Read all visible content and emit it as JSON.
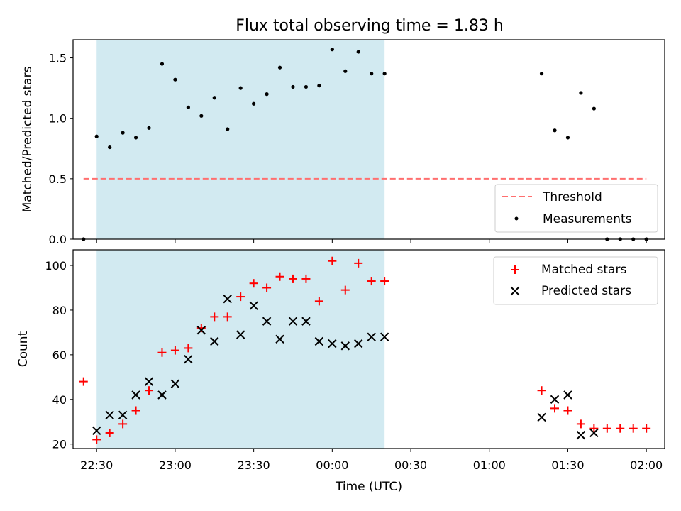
{
  "chart_data": [
    {
      "type": "scatter",
      "title": "Flux total observing time = 1.83 h",
      "xlabel": "",
      "ylabel": "Matched/Predicted stars",
      "xlim": [
        "22:21",
        "02:07"
      ],
      "ylim": [
        0,
        1.65
      ],
      "yticks": [
        "0.0",
        "0.5",
        "1.0",
        "1.5"
      ],
      "shaded_interval": [
        "22:30",
        "00:20"
      ],
      "shade_color": "#add8e6",
      "threshold": {
        "label": "Threshold",
        "value": 0.5,
        "x_start": "22:25",
        "x_end": "02:00",
        "color": "#ff6f6f"
      },
      "series": [
        {
          "name": "Measurements",
          "marker": "dot",
          "color": "#000000",
          "points": [
            [
              "22:25",
              0.0
            ],
            [
              "22:30",
              0.85
            ],
            [
              "22:35",
              0.76
            ],
            [
              "22:40",
              0.88
            ],
            [
              "22:45",
              0.84
            ],
            [
              "22:50",
              0.92
            ],
            [
              "22:55",
              1.45
            ],
            [
              "23:00",
              1.32
            ],
            [
              "23:05",
              1.09
            ],
            [
              "23:10",
              1.02
            ],
            [
              "23:15",
              1.17
            ],
            [
              "23:20",
              0.91
            ],
            [
              "23:25",
              1.25
            ],
            [
              "23:30",
              1.12
            ],
            [
              "23:35",
              1.2
            ],
            [
              "23:40",
              1.42
            ],
            [
              "23:45",
              1.26
            ],
            [
              "23:50",
              1.26
            ],
            [
              "23:55",
              1.27
            ],
            [
              "00:00",
              1.57
            ],
            [
              "00:05",
              1.39
            ],
            [
              "00:10",
              1.55
            ],
            [
              "00:15",
              1.37
            ],
            [
              "00:20",
              1.37
            ],
            [
              "01:20",
              1.37
            ],
            [
              "01:25",
              0.9
            ],
            [
              "01:30",
              0.84
            ],
            [
              "01:35",
              1.21
            ],
            [
              "01:40",
              1.08
            ],
            [
              "01:45",
              0.0
            ],
            [
              "01:50",
              0.0
            ],
            [
              "01:55",
              0.0
            ],
            [
              "02:00",
              0.0
            ]
          ]
        }
      ],
      "legend_position": "lower-right"
    },
    {
      "type": "scatter",
      "title": "",
      "xlabel": "Time (UTC)",
      "ylabel": "Count",
      "xlim": [
        "22:21",
        "02:07"
      ],
      "ylim": [
        18,
        107
      ],
      "xticks": [
        "22:30",
        "23:00",
        "23:30",
        "00:00",
        "00:30",
        "01:00",
        "01:30",
        "02:00"
      ],
      "yticks": [
        "20",
        "40",
        "60",
        "80",
        "100"
      ],
      "shaded_interval": [
        "22:30",
        "00:20"
      ],
      "shade_color": "#add8e6",
      "series": [
        {
          "name": "Matched stars",
          "marker": "plus",
          "color": "#ff0000",
          "points": [
            [
              "22:25",
              48
            ],
            [
              "22:30",
              22
            ],
            [
              "22:35",
              25
            ],
            [
              "22:40",
              29
            ],
            [
              "22:45",
              35
            ],
            [
              "22:50",
              44
            ],
            [
              "22:55",
              61
            ],
            [
              "23:00",
              62
            ],
            [
              "23:05",
              63
            ],
            [
              "23:10",
              72
            ],
            [
              "23:15",
              77
            ],
            [
              "23:20",
              77
            ],
            [
              "23:25",
              86
            ],
            [
              "23:30",
              92
            ],
            [
              "23:35",
              90
            ],
            [
              "23:40",
              95
            ],
            [
              "23:45",
              94
            ],
            [
              "23:50",
              94
            ],
            [
              "23:55",
              84
            ],
            [
              "00:00",
              102
            ],
            [
              "00:05",
              89
            ],
            [
              "00:10",
              101
            ],
            [
              "00:15",
              93
            ],
            [
              "00:20",
              93
            ],
            [
              "01:20",
              44
            ],
            [
              "01:25",
              36
            ],
            [
              "01:30",
              35
            ],
            [
              "01:35",
              29
            ],
            [
              "01:40",
              27
            ],
            [
              "01:45",
              27
            ],
            [
              "01:50",
              27
            ],
            [
              "01:55",
              27
            ],
            [
              "02:00",
              27
            ]
          ]
        },
        {
          "name": "Predicted stars",
          "marker": "x",
          "color": "#000000",
          "points": [
            [
              "22:30",
              26
            ],
            [
              "22:35",
              33
            ],
            [
              "22:40",
              33
            ],
            [
              "22:45",
              42
            ],
            [
              "22:50",
              48
            ],
            [
              "22:55",
              42
            ],
            [
              "23:00",
              47
            ],
            [
              "23:05",
              58
            ],
            [
              "23:10",
              71
            ],
            [
              "23:15",
              66
            ],
            [
              "23:20",
              85
            ],
            [
              "23:25",
              69
            ],
            [
              "23:30",
              82
            ],
            [
              "23:35",
              75
            ],
            [
              "23:40",
              67
            ],
            [
              "23:45",
              75
            ],
            [
              "23:50",
              75
            ],
            [
              "23:55",
              66
            ],
            [
              "00:00",
              65
            ],
            [
              "00:05",
              64
            ],
            [
              "00:10",
              65
            ],
            [
              "00:15",
              68
            ],
            [
              "00:20",
              68
            ],
            [
              "01:20",
              32
            ],
            [
              "01:25",
              40
            ],
            [
              "01:30",
              42
            ],
            [
              "01:35",
              24
            ],
            [
              "01:40",
              25
            ]
          ]
        }
      ],
      "legend_position": "upper-right"
    }
  ]
}
